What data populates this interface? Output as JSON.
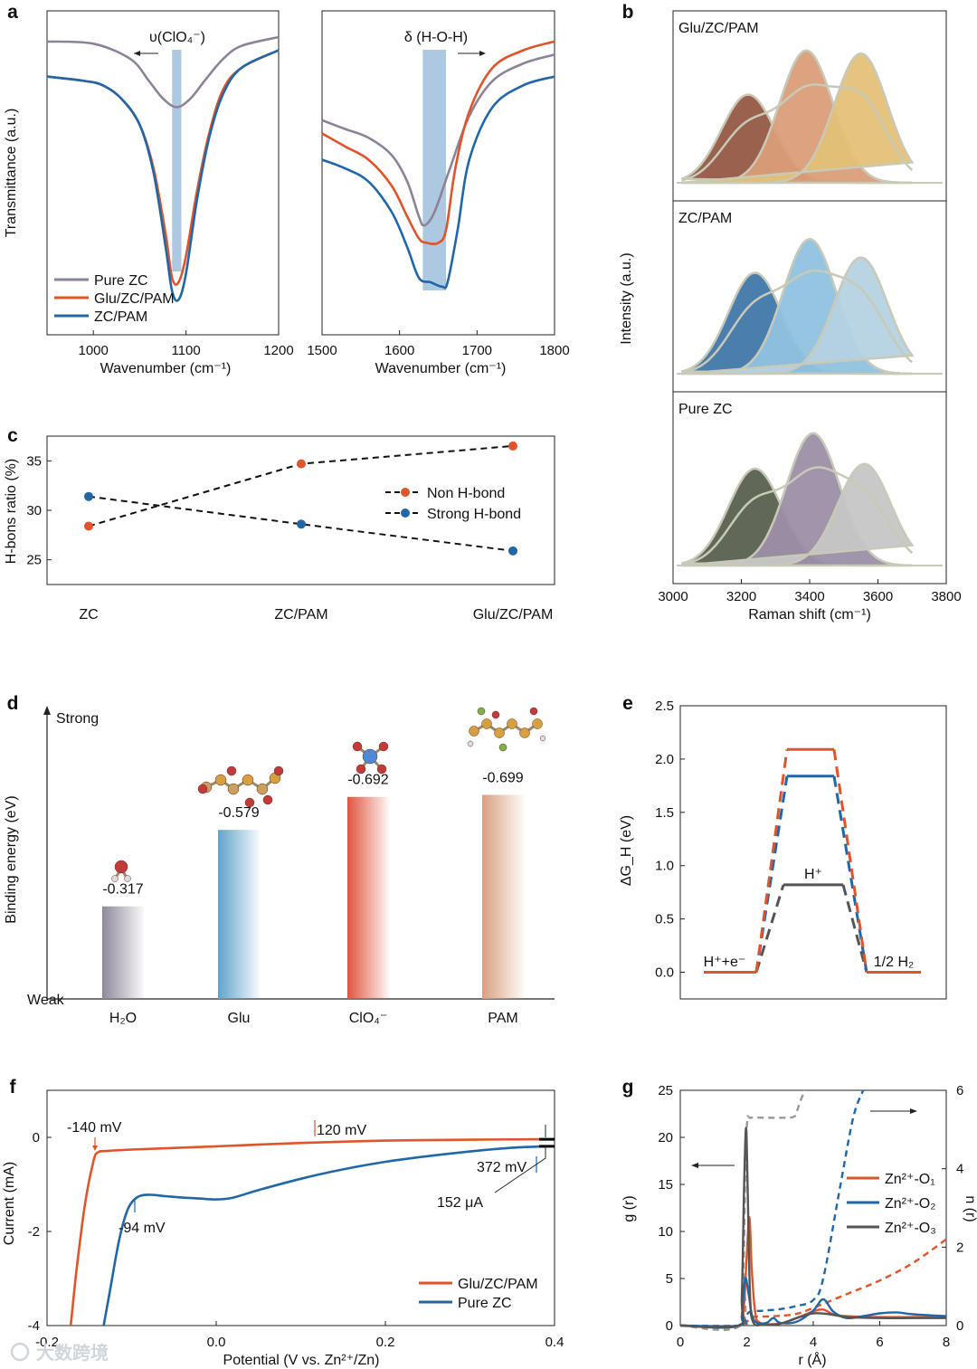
{
  "colors": {
    "pure_zc": "#8e8299",
    "glu_zc_pam": "#e0542a",
    "zc_pam": "#2167a8",
    "dark_gray": "#555555",
    "band": "#9fc0dc"
  },
  "chart_data": [
    {
      "id": "a-left",
      "panel_label": "a",
      "type": "line",
      "xlabel": "Wavenumber (cm⁻¹)",
      "ylabel": "Transmittance (a.u.)",
      "xlim": [
        950,
        1200
      ],
      "xticks": [
        "1000",
        "1100",
        "1200"
      ],
      "annotation": "υ(ClO₄⁻)",
      "band_center": 1090,
      "legend": [
        "Pure ZC",
        "Glu/ZC/PAM",
        "ZC/PAM"
      ],
      "series": [
        {
          "name": "Pure ZC",
          "x": [
            950,
            1000,
            1040,
            1060,
            1075,
            1090,
            1105,
            1120,
            1140,
            1160,
            1200
          ],
          "y": [
            0.89,
            0.885,
            0.85,
            0.8,
            0.76,
            0.74,
            0.76,
            0.8,
            0.85,
            0.88,
            0.9
          ]
        },
        {
          "name": "Glu/ZC/PAM",
          "x": [
            950,
            990,
            1010,
            1030,
            1050,
            1065,
            1078,
            1085,
            1092,
            1100,
            1112,
            1125,
            1140,
            1160,
            1200
          ],
          "y": [
            0.81,
            0.8,
            0.79,
            0.76,
            0.7,
            0.6,
            0.45,
            0.35,
            0.34,
            0.4,
            0.55,
            0.68,
            0.78,
            0.83,
            0.87
          ]
        },
        {
          "name": "ZC/PAM",
          "x": [
            950,
            990,
            1010,
            1030,
            1050,
            1065,
            1078,
            1085,
            1092,
            1100,
            1112,
            1125,
            1140,
            1160,
            1200
          ],
          "y": [
            0.81,
            0.8,
            0.79,
            0.76,
            0.7,
            0.59,
            0.42,
            0.32,
            0.3,
            0.36,
            0.53,
            0.67,
            0.77,
            0.83,
            0.87
          ]
        }
      ]
    },
    {
      "id": "a-right",
      "type": "line",
      "xlabel": "Wavenumber (cm⁻¹)",
      "xlim": [
        1500,
        1800
      ],
      "xticks": [
        "1500",
        "1600",
        "1700",
        "1800"
      ],
      "annotation": "δ (H-O-H)",
      "band_range": [
        1630,
        1660
      ],
      "series": [
        {
          "name": "Pure ZC",
          "x": [
            1500,
            1530,
            1560,
            1590,
            1610,
            1625,
            1632,
            1645,
            1665,
            1690,
            1720,
            1760,
            1800
          ],
          "y": [
            0.71,
            0.69,
            0.67,
            0.63,
            0.57,
            0.49,
            0.47,
            0.5,
            0.6,
            0.72,
            0.8,
            0.84,
            0.86
          ]
        },
        {
          "name": "Glu/ZC/PAM",
          "x": [
            1500,
            1530,
            1560,
            1590,
            1610,
            1625,
            1635,
            1650,
            1660,
            1672,
            1690,
            1720,
            1760,
            1800
          ],
          "y": [
            0.68,
            0.65,
            0.62,
            0.56,
            0.49,
            0.44,
            0.43,
            0.43,
            0.46,
            0.6,
            0.73,
            0.83,
            0.87,
            0.89
          ]
        },
        {
          "name": "ZC/PAM",
          "x": [
            1500,
            1530,
            1560,
            1590,
            1610,
            1625,
            1640,
            1655,
            1662,
            1675,
            1690,
            1720,
            1760,
            1800
          ],
          "y": [
            0.62,
            0.6,
            0.57,
            0.5,
            0.42,
            0.35,
            0.34,
            0.33,
            0.34,
            0.46,
            0.62,
            0.74,
            0.79,
            0.81
          ]
        }
      ]
    },
    {
      "id": "b",
      "panel_label": "b",
      "type": "area",
      "xlabel": "Raman shift (cm⁻¹)",
      "ylabel": "Intensity (a.u.)",
      "xlim": [
        3000,
        3800
      ],
      "xticks": [
        "3000",
        "3200",
        "3400",
        "3600",
        "3800"
      ],
      "subpanels": [
        {
          "title": "Glu/ZC/PAM",
          "colors": [
            "#945844",
            "#d99e78",
            "#e3c177"
          ],
          "peaks": [
            {
              "center": 3220,
              "height": 0.58
            },
            {
              "center": 3390,
              "height": 0.87
            },
            {
              "center": 3550,
              "height": 0.85
            }
          ]
        },
        {
          "title": "ZC/PAM",
          "colors": [
            "#4077a8",
            "#90c2df",
            "#b5d2e0"
          ],
          "peaks": [
            {
              "center": 3240,
              "height": 0.66
            },
            {
              "center": 3400,
              "height": 0.88
            },
            {
              "center": 3550,
              "height": 0.76
            }
          ]
        },
        {
          "title": "Pure ZC",
          "colors": [
            "#5a604e",
            "#9b8fa6",
            "#c6c6c6"
          ],
          "peaks": [
            {
              "center": 3240,
              "height": 0.63
            },
            {
              "center": 3410,
              "height": 0.86
            },
            {
              "center": 3560,
              "height": 0.66
            }
          ]
        }
      ]
    },
    {
      "id": "c",
      "panel_label": "c",
      "type": "line",
      "ylabel": "H-bons ratio (%)",
      "ylim": [
        22.5,
        37.5
      ],
      "yticks": [
        "25",
        "30",
        "35"
      ],
      "categories": [
        "ZC",
        "ZC/PAM",
        "Glu/ZC/PAM"
      ],
      "legend": [
        "Non H-bond",
        "Strong H-bond"
      ],
      "series": [
        {
          "name": "Non H-bond",
          "values": [
            28.4,
            34.7,
            36.5
          ]
        },
        {
          "name": "Strong H-bond",
          "values": [
            31.4,
            28.6,
            25.9
          ]
        }
      ]
    },
    {
      "id": "d",
      "panel_label": "d",
      "type": "bar",
      "ylabel": "Binding energy (eV)",
      "y_top_label": "Strong",
      "y_bottom_label": "Weak",
      "categories": [
        "H₂O",
        "Glu",
        "ClO₄⁻",
        "PAM"
      ],
      "values": [
        -0.317,
        -0.579,
        -0.692,
        -0.699
      ],
      "labels": [
        "-0.317",
        "-0.579",
        "-0.692",
        "-0.699"
      ]
    },
    {
      "id": "e",
      "panel_label": "e",
      "type": "line",
      "ylabel": "ΔG_H (eV)",
      "ylim": [
        -0.25,
        2.5
      ],
      "yticks": [
        "0.0",
        "0.5",
        "1.0",
        "1.5",
        "2.0",
        "2.5"
      ],
      "state_labels": [
        "H⁺+e⁻",
        "H⁺",
        "1/2 H₂"
      ],
      "series": [
        {
          "color": "#555555",
          "values": [
            0.0,
            0.82,
            0.0
          ]
        },
        {
          "color": "#2167a8",
          "values": [
            0.0,
            1.84,
            0.0
          ]
        },
        {
          "color": "#e0542a",
          "values": [
            0.0,
            2.09,
            0.0
          ]
        }
      ]
    },
    {
      "id": "f",
      "panel_label": "f",
      "type": "line",
      "xlabel": "Potential (V vs. Zn²⁺/Zn)",
      "ylabel": "Current (mA)",
      "xlim": [
        -0.2,
        0.4
      ],
      "ylim": [
        -4,
        1
      ],
      "xticks": [
        "-0.2",
        "0.0",
        "0.2",
        "0.4"
      ],
      "yticks": [
        "-4",
        "-2",
        "0"
      ],
      "annotations": [
        "-140 mV",
        "120 mV",
        "372 mV",
        "-94 mV",
        "152 μA"
      ],
      "legend": [
        "Glu/ZC/PAM",
        "Pure ZC"
      ],
      "series": [
        {
          "name": "Glu/ZC/PAM",
          "x": [
            -0.172,
            -0.165,
            -0.155,
            -0.145,
            -0.14,
            -0.13,
            -0.1,
            0.0,
            0.1,
            0.2,
            0.3,
            0.39
          ],
          "y": [
            -4.0,
            -2.8,
            -1.4,
            -0.5,
            -0.32,
            -0.29,
            -0.26,
            -0.19,
            -0.12,
            -0.07,
            -0.05,
            -0.04
          ]
        },
        {
          "name": "Pure ZC",
          "x": [
            -0.133,
            -0.125,
            -0.115,
            -0.105,
            -0.094,
            -0.08,
            -0.06,
            -0.04,
            -0.02,
            0.0,
            0.02,
            0.05,
            0.1,
            0.15,
            0.2,
            0.25,
            0.3,
            0.35,
            0.39
          ],
          "y": [
            -4.0,
            -3.2,
            -2.2,
            -1.55,
            -1.28,
            -1.22,
            -1.25,
            -1.28,
            -1.3,
            -1.32,
            -1.28,
            -1.12,
            -0.88,
            -0.68,
            -0.52,
            -0.4,
            -0.3,
            -0.22,
            -0.19
          ]
        }
      ]
    },
    {
      "id": "g",
      "panel_label": "g",
      "type": "line",
      "xlabel": "r (Å)",
      "ylabel": "g (r)",
      "y2label": "n (r)",
      "xlim": [
        0,
        8
      ],
      "ylim": [
        0,
        25
      ],
      "y2lim": [
        0,
        6
      ],
      "xticks": [
        "0",
        "2",
        "4",
        "6",
        "8"
      ],
      "yticks": [
        "0",
        "5",
        "10",
        "15",
        "20",
        "25"
      ],
      "y2ticks": [
        "0",
        "2",
        "4",
        "6"
      ],
      "legend": [
        "Zn²⁺-O₁",
        "Zn²⁺-O₂",
        "Zn²⁺-O₃"
      ],
      "series": [
        {
          "name": "Zn²⁺-O₁",
          "axis": "left",
          "x": [
            0,
            1.75,
            1.9,
            2.0,
            2.08,
            2.15,
            2.25,
            2.4,
            3.0,
            3.5,
            4.0,
            4.3,
            4.6,
            5.0,
            6.0,
            7.0,
            8.0
          ],
          "y": [
            0,
            0,
            1.5,
            7.5,
            11.5,
            6.0,
            1.5,
            0.3,
            0.2,
            0.8,
            1.5,
            1.7,
            1.2,
            1.0,
            0.9,
            0.9,
            0.9
          ]
        },
        {
          "name": "Zn²⁺-O₂",
          "axis": "left",
          "x": [
            0,
            1.75,
            1.85,
            1.95,
            2.05,
            2.15,
            2.3,
            2.6,
            2.8,
            3.0,
            3.5,
            4.0,
            4.3,
            4.6,
            5.0,
            5.5,
            6.0,
            6.5,
            7.0,
            8.0
          ],
          "y": [
            0,
            0,
            1.0,
            5.0,
            3.5,
            1.2,
            0.3,
            0.3,
            0.8,
            0.3,
            0.4,
            1.6,
            2.8,
            1.5,
            0.8,
            1.0,
            1.3,
            1.4,
            1.2,
            1.0
          ]
        },
        {
          "name": "Zn²⁺-O₃",
          "axis": "left",
          "x": [
            0,
            1.75,
            1.85,
            1.92,
            1.98,
            2.03,
            2.1,
            2.2,
            2.5,
            3.0,
            3.5,
            4.0,
            4.5,
            5.0,
            6.0,
            7.0,
            8.0
          ],
          "y": [
            0,
            0,
            3.0,
            15.0,
            21.0,
            14.0,
            3.0,
            0.3,
            0.1,
            0.2,
            0.8,
            1.3,
            1.2,
            0.9,
            0.8,
            0.8,
            0.8
          ]
        },
        {
          "name": "n Zn²⁺-O₁",
          "axis": "right",
          "x": [
            0,
            1.8,
            2.0,
            2.2,
            2.6,
            3.0,
            3.5,
            4.0,
            5.0,
            6.0,
            7.0,
            8.0
          ],
          "y": [
            0,
            0,
            0.1,
            0.22,
            0.23,
            0.25,
            0.3,
            0.45,
            0.8,
            1.15,
            1.6,
            2.2
          ]
        },
        {
          "name": "n Zn²⁺-O₂",
          "axis": "right",
          "x": [
            0,
            1.8,
            1.95,
            2.1,
            2.5,
            3.0,
            3.5,
            4.0,
            4.3,
            4.8,
            5.2,
            5.5
          ],
          "y": [
            0,
            0,
            0.2,
            0.35,
            0.38,
            0.42,
            0.5,
            0.65,
            1.2,
            3.5,
            5.3,
            6.0
          ]
        },
        {
          "name": "n Zn²⁺-O₃",
          "axis": "right",
          "x": [
            0,
            1.8,
            1.9,
            1.96,
            2.02,
            2.1,
            2.5,
            3.0,
            3.4,
            3.5,
            3.6,
            3.75
          ],
          "y": [
            0,
            0,
            1.5,
            4.2,
            5.25,
            5.3,
            5.3,
            5.3,
            5.32,
            5.45,
            5.7,
            6.0
          ]
        }
      ]
    }
  ],
  "watermark": "大数跨境"
}
